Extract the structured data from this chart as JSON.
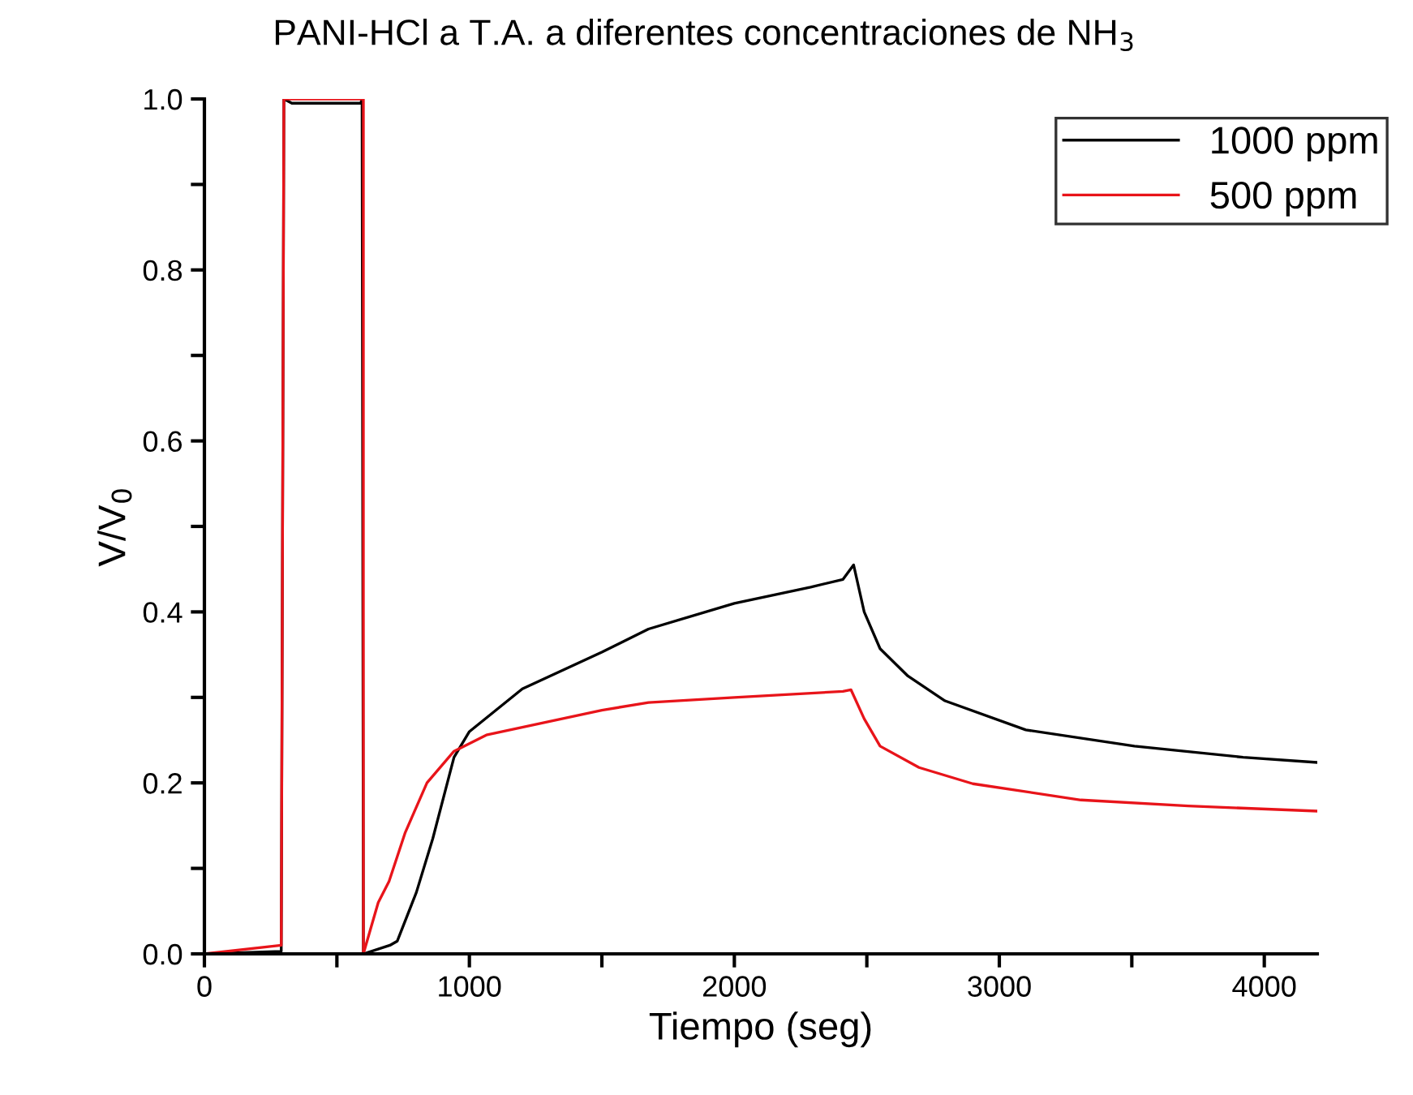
{
  "chart_data": {
    "type": "line",
    "title": "PANI-HCl a T.A. a diferentes concentraciones de NH$_{3}$",
    "xlabel": "Tiempo (seg)",
    "ylabel": "V/V$_{0}$",
    "series": [
      {
        "name": "1000 ppm",
        "color": "#000000",
        "x": [
          0,
          290,
          300,
          330,
          590,
          595,
          600,
          700,
          728,
          800,
          862,
          942,
          1000,
          1200,
          1500,
          1676,
          2000,
          2288,
          2410,
          2450,
          2490,
          2550,
          2655,
          2795,
          3100,
          3510,
          3920,
          4196
        ],
        "values": [
          0,
          0.003,
          1.0,
          0.995,
          0.995,
          1.0,
          0,
          0.01,
          0.015,
          0.072,
          0.135,
          0.23,
          0.26,
          0.31,
          0.353,
          0.38,
          0.41,
          0.429,
          0.438,
          0.455,
          0.4,
          0.357,
          0.325,
          0.296,
          0.262,
          0.243,
          0.23,
          0.224
        ]
      },
      {
        "name": "500 ppm",
        "color": "#e8141a",
        "x": [
          0,
          290,
          300,
          600,
          600,
          626,
          656,
          697,
          758,
          840,
          942,
          1064,
          1500,
          1676,
          2000,
          2410,
          2440,
          2490,
          2550,
          2697,
          2900,
          3308,
          3713,
          4196
        ],
        "values": [
          0,
          0.01,
          1.0,
          1.0,
          0,
          0.028,
          0.06,
          0.085,
          0.142,
          0.2,
          0.237,
          0.256,
          0.285,
          0.294,
          0.3,
          0.307,
          0.309,
          0.275,
          0.243,
          0.218,
          0.199,
          0.18,
          0.173,
          0.167
        ]
      }
    ],
    "xlim": [
      0,
      4200
    ],
    "xticks": [
      0,
      {
        "value": 500,
        "label": null
      },
      1000,
      {
        "value": 1500,
        "label": null
      },
      2000,
      {
        "value": 2500,
        "label": null
      },
      3000,
      {
        "value": 3500,
        "label": null
      },
      4000
    ],
    "ylim": [
      0,
      1.0
    ],
    "yticks": [
      {
        "value": 0,
        "label": "0.0"
      },
      {
        "value": 0.1,
        "label": null
      },
      0.2,
      {
        "value": 0.3,
        "label": null
      },
      0.4,
      {
        "value": 0.5,
        "label": null
      },
      0.6,
      {
        "value": 0.7,
        "label": null
      },
      0.8,
      {
        "value": 0.9,
        "label": null
      },
      {
        "value": 1.0,
        "label": "1.0"
      }
    ],
    "legend": "top right",
    "grid": false,
    "marker": "none",
    "line_style": "solid"
  }
}
